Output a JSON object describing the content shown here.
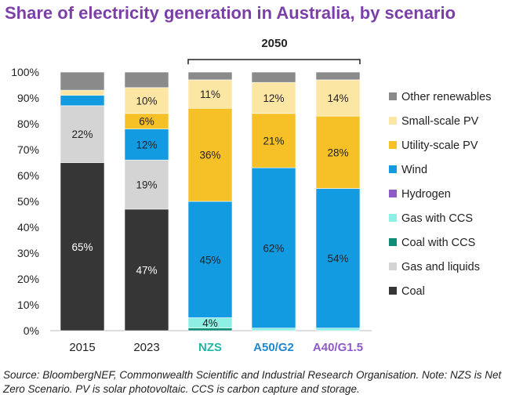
{
  "title": "Share of electricity generation in Australia, by scenario",
  "source_note": "Source: BloombergNEF, Commonwealth Scientific and Industrial Research Organisation. Note: NZS is Net Zero Scenario. PV is solar photovoltaic. CCS is carbon capture and storage.",
  "group_label": "2050",
  "chart_data": {
    "type": "bar",
    "stacked": true,
    "title": "Share of electricity generation in Australia, by scenario",
    "xlabel": "",
    "ylabel": "",
    "ylim": [
      0,
      100
    ],
    "yticks": [
      "0%",
      "10%",
      "20%",
      "30%",
      "40%",
      "50%",
      "60%",
      "70%",
      "80%",
      "90%",
      "100%"
    ],
    "categories": [
      "2015",
      "2023",
      "NZS",
      "A50/G2",
      "A40/G1.5"
    ],
    "category_colors": [
      "#222222",
      "#222222",
      "#1fb8a6",
      "#1e88d0",
      "#8e5ac8"
    ],
    "series": [
      {
        "name": "Coal",
        "color": "#363636",
        "values": [
          65,
          47,
          0,
          0,
          0
        ],
        "labels": [
          "65%",
          "47%",
          "",
          "",
          ""
        ]
      },
      {
        "name": "Gas and liquids",
        "color": "#d4d4d4",
        "values": [
          22,
          19,
          0,
          0,
          0
        ],
        "labels": [
          "22%",
          "19%",
          "",
          "",
          ""
        ]
      },
      {
        "name": "Coal with CCS",
        "color": "#0e8c74",
        "values": [
          0,
          0,
          1,
          0,
          0
        ],
        "labels": [
          "",
          "",
          "",
          "",
          ""
        ]
      },
      {
        "name": "Gas with CCS",
        "color": "#8ef0e4",
        "values": [
          0,
          0,
          4,
          1,
          1
        ],
        "labels": [
          "",
          "",
          "4%",
          "",
          ""
        ]
      },
      {
        "name": "Hydrogen",
        "color": "#8e5ac8",
        "values": [
          0,
          0,
          0,
          0,
          0
        ],
        "labels": [
          "",
          "",
          "",
          "",
          ""
        ]
      },
      {
        "name": "Wind",
        "color": "#129be0",
        "values": [
          4,
          12,
          45,
          62,
          54
        ],
        "labels": [
          "",
          "12%",
          "45%",
          "62%",
          "54%"
        ]
      },
      {
        "name": "Utility-scale PV",
        "color": "#f6c127",
        "values": [
          0,
          6,
          36,
          21,
          28
        ],
        "labels": [
          "",
          "6%",
          "36%",
          "21%",
          "28%"
        ]
      },
      {
        "name": "Small-scale PV",
        "color": "#fbe6a4",
        "values": [
          2,
          10,
          11,
          12,
          14
        ],
        "labels": [
          "",
          "10%",
          "11%",
          "12%",
          "14%"
        ]
      },
      {
        "name": "Other renewables",
        "color": "#8a8a8a",
        "values": [
          7,
          6,
          3,
          4,
          3
        ],
        "labels": [
          "",
          "",
          "",
          "",
          ""
        ]
      }
    ],
    "legend_order": [
      "Other renewables",
      "Small-scale PV",
      "Utility-scale PV",
      "Wind",
      "Hydrogen",
      "Gas with CCS",
      "Coal with CCS",
      "Gas and liquids",
      "Coal"
    ],
    "legend_position": "right"
  }
}
